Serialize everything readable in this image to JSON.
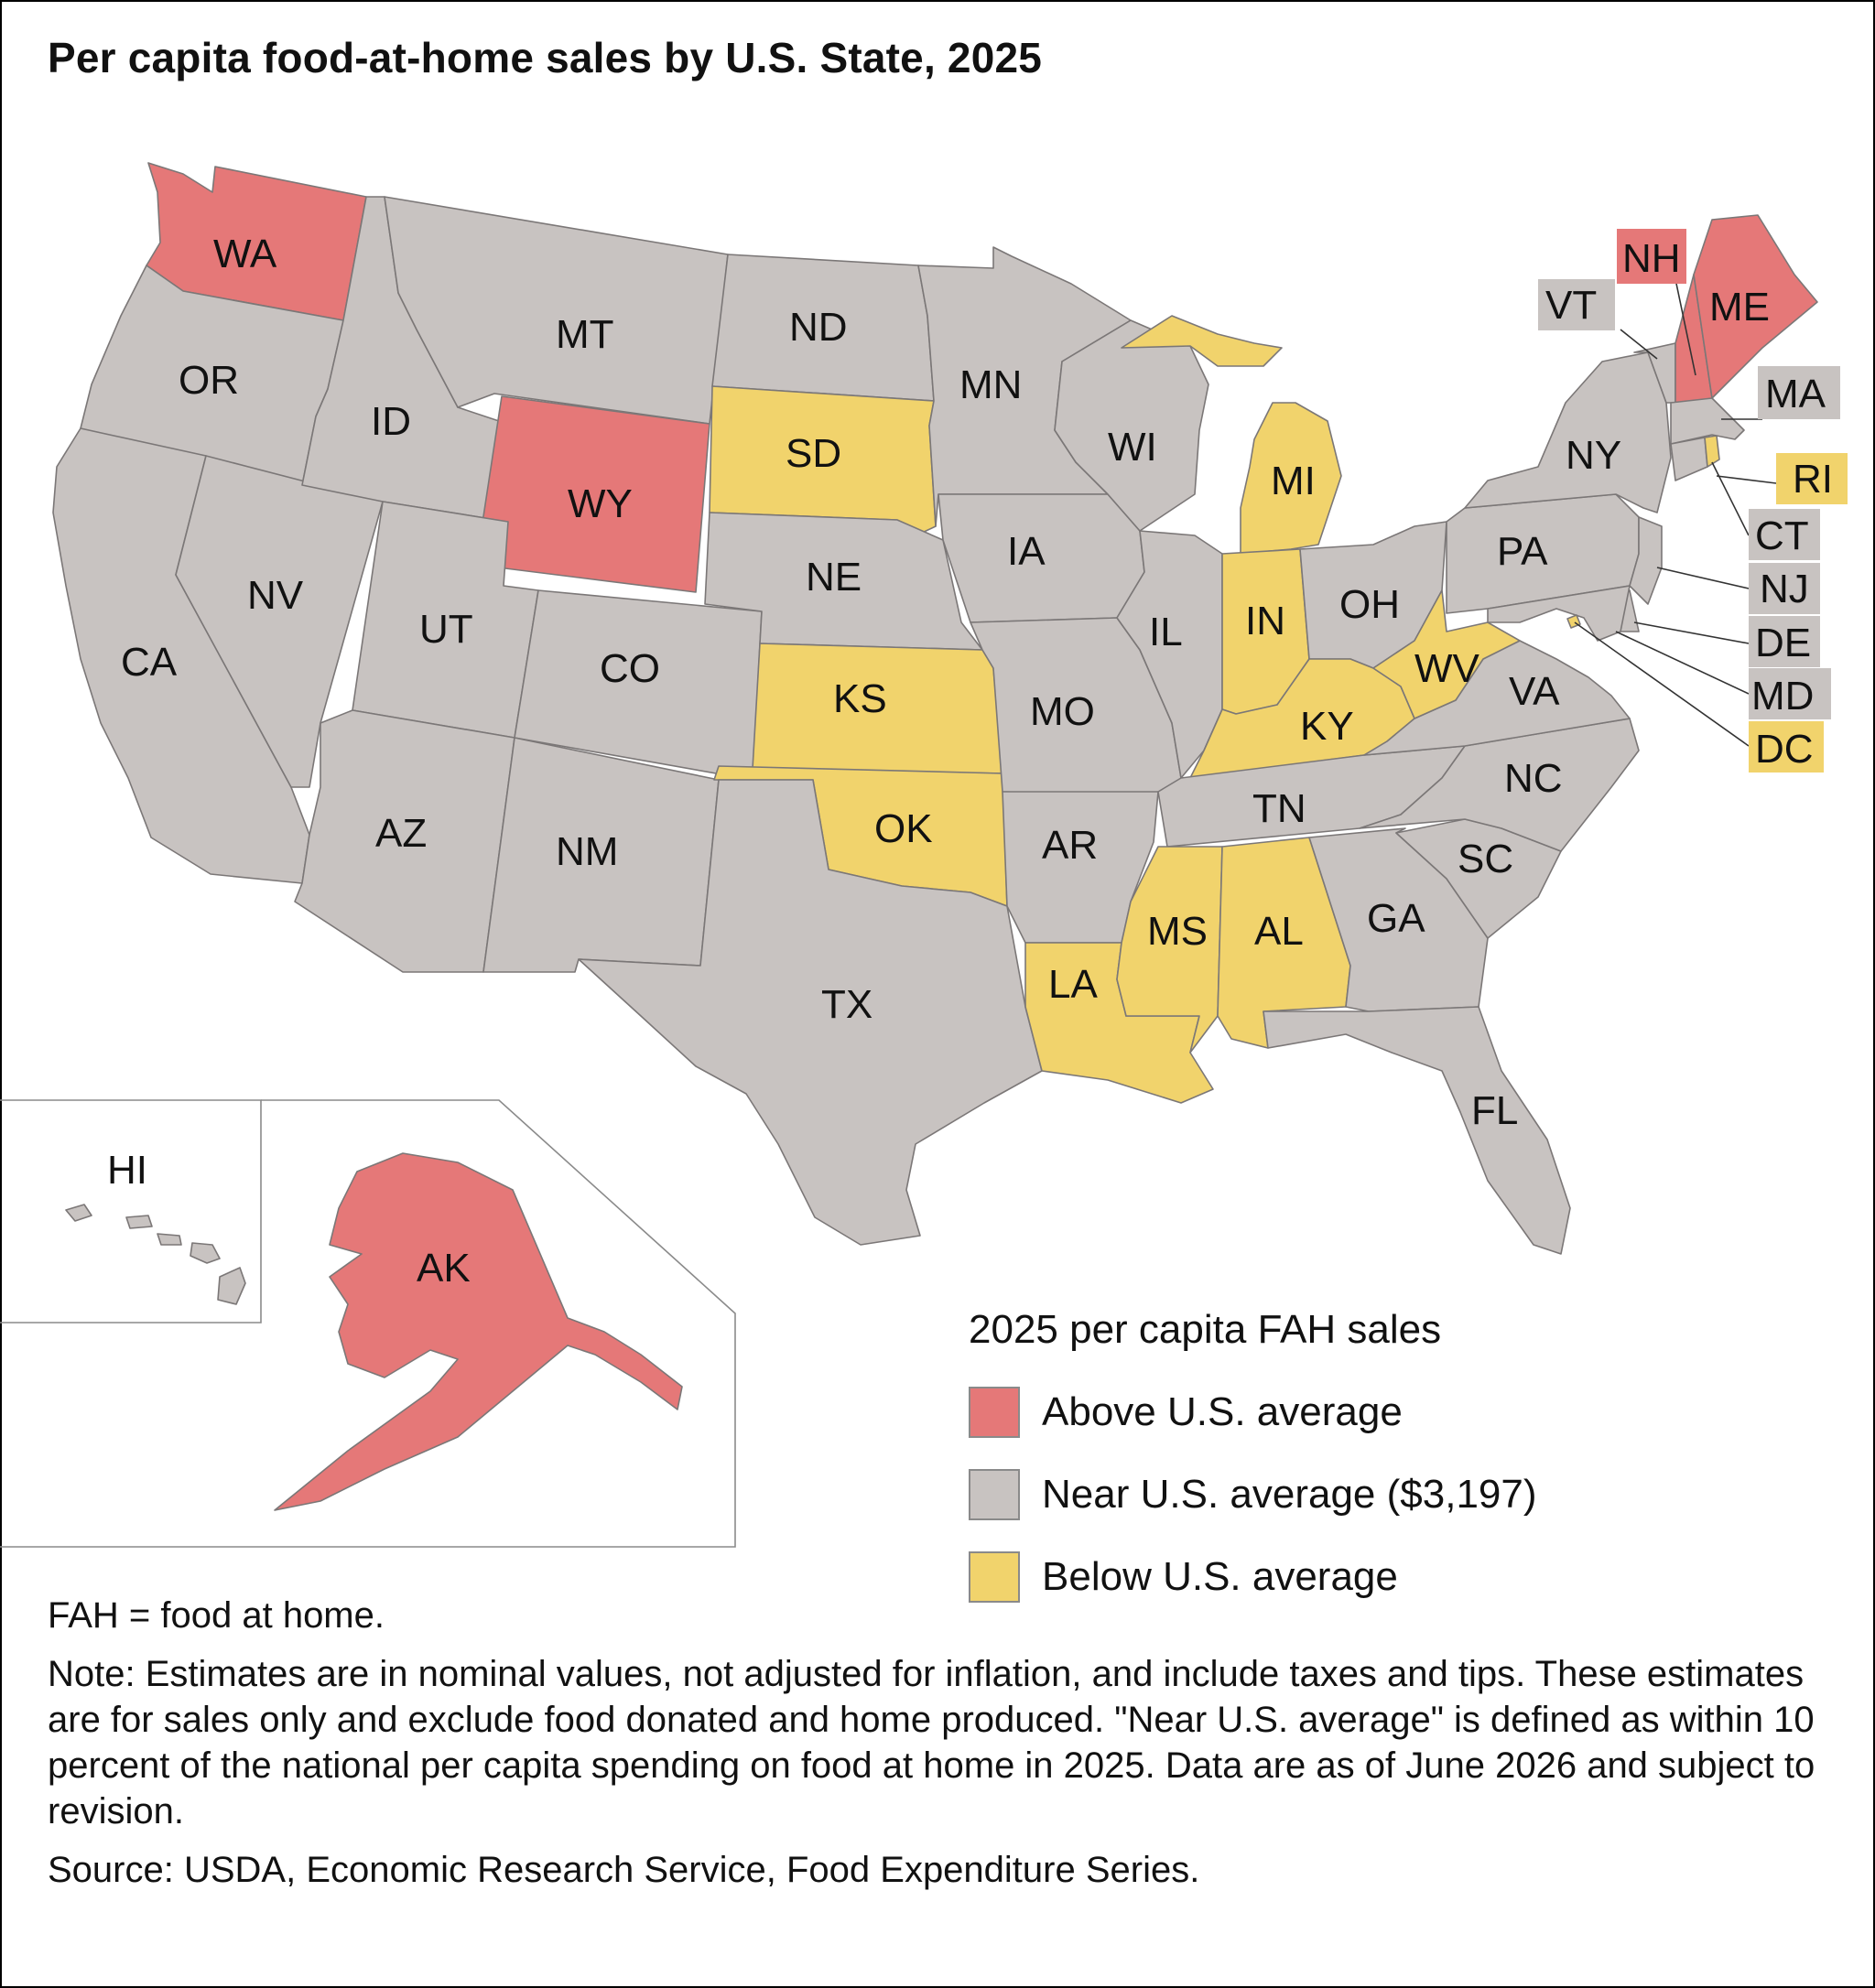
{
  "title": "Per capita food-at-home sales by U.S. State, 2025",
  "colors": {
    "above": "#e57878",
    "near": "#c8c3c1",
    "below": "#f1d36c",
    "border": "#7b7777"
  },
  "legend": {
    "title": "2025 per capita FAH sales",
    "items": [
      {
        "key": "above",
        "label": "Above U.S. average"
      },
      {
        "key": "near",
        "label": "Near U.S. average ($3,197)"
      },
      {
        "key": "below",
        "label": "Below U.S. average"
      }
    ]
  },
  "states": {
    "WA": "above",
    "OR": "near",
    "CA": "near",
    "NV": "near",
    "ID": "near",
    "MT": "near",
    "WY": "above",
    "UT": "near",
    "AZ": "near",
    "CO": "near",
    "NM": "near",
    "ND": "near",
    "SD": "below",
    "NE": "near",
    "KS": "below",
    "OK": "below",
    "TX": "near",
    "MN": "near",
    "IA": "near",
    "MO": "near",
    "AR": "near",
    "LA": "below",
    "WI": "near",
    "IL": "near",
    "MI": "below",
    "IN": "below",
    "OH": "near",
    "KY": "below",
    "TN": "near",
    "MS": "below",
    "AL": "below",
    "GA": "near",
    "FL": "near",
    "SC": "near",
    "NC": "near",
    "VA": "near",
    "WV": "below",
    "PA": "near",
    "NY": "near",
    "NJ": "near",
    "DE": "near",
    "MD": "near",
    "DC": "below",
    "CT": "near",
    "RI": "below",
    "MA": "near",
    "VT": "near",
    "NH": "above",
    "ME": "above",
    "AK": "above",
    "HI": "near"
  },
  "notes": [
    "FAH = food at home.",
    "Note: Estimates are in nominal values, not adjusted for inflation, and include taxes and tips. These estimates are for sales only and exclude food donated and home produced. \"Near U.S. average\" is defined as within 10 percent of the national per capita spending on food at home in 2025. Data are as of June 2026 and subject to revision.",
    "Source: USDA, Economic Research Service, Food Expenditure Series."
  ]
}
